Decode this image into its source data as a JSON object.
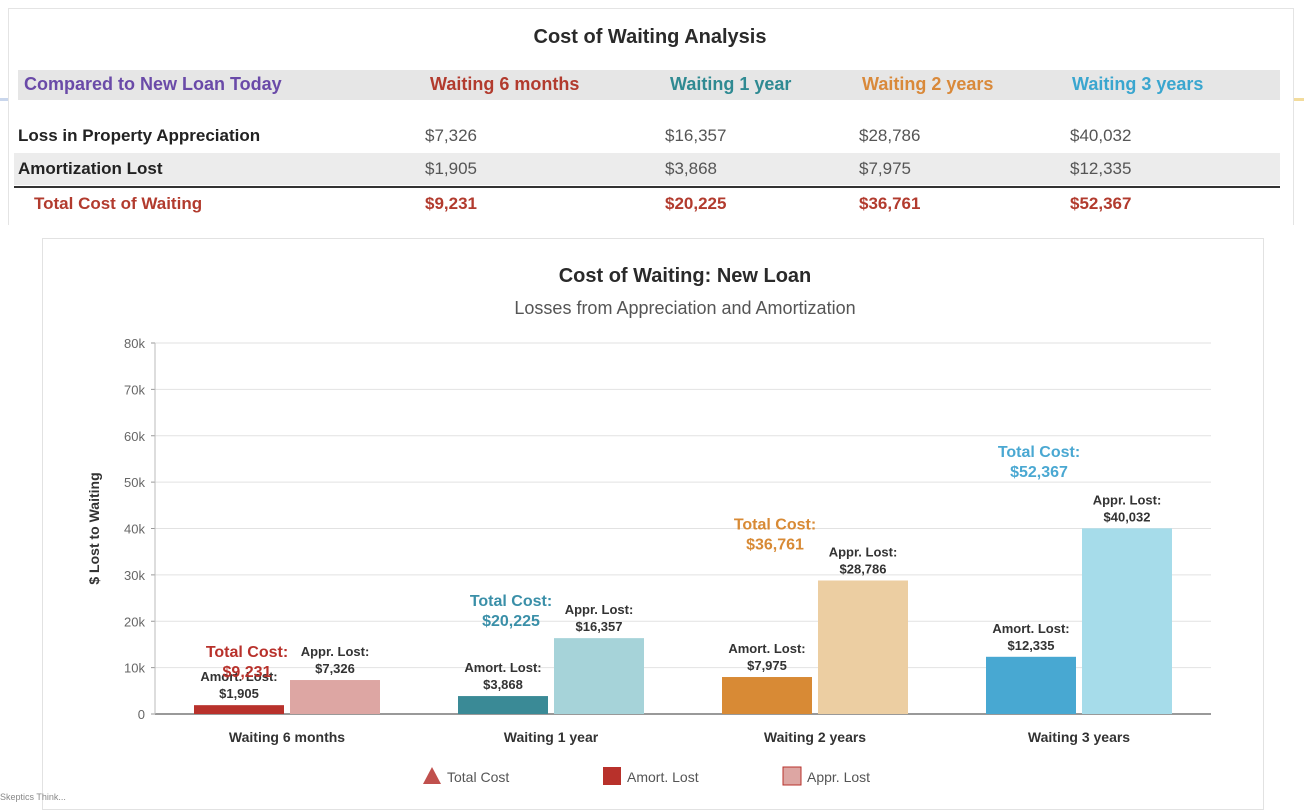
{
  "table": {
    "title": "Cost of Waiting Analysis",
    "headers": [
      "Compared to New Loan Today",
      "Waiting 6 months",
      "Waiting 1 year",
      "Waiting 2 years",
      "Waiting 3 years"
    ],
    "header_colors": [
      "#6a4aa8",
      "#b23b2e",
      "#2f8a92",
      "#d9893a",
      "#3aa6cf"
    ],
    "rows": [
      {
        "label": "Loss in Property Appreciation",
        "values": [
          "$7,326",
          "$16,357",
          "$28,786",
          "$40,032"
        ]
      },
      {
        "label": "Amortization Lost",
        "values": [
          "$1,905",
          "$3,868",
          "$7,975",
          "$12,335"
        ]
      }
    ],
    "total": {
      "label": "Total Cost of Waiting",
      "values": [
        "$9,231",
        "$20,225",
        "$36,761",
        "$52,367"
      ]
    }
  },
  "chart_data": {
    "type": "bar",
    "title": "Cost of Waiting: New Loan",
    "subtitle": "Losses from Appreciation and Amortization",
    "ylabel": "$ Lost to Waiting",
    "xlabel": "",
    "ylim": [
      0,
      80000
    ],
    "yticks": [
      0,
      10000,
      20000,
      30000,
      40000,
      50000,
      60000,
      70000,
      80000
    ],
    "ytick_labels": [
      "0",
      "10k",
      "20k",
      "30k",
      "40k",
      "50k",
      "60k",
      "70k",
      "80k"
    ],
    "categories": [
      "Waiting 6 months",
      "Waiting 1 year",
      "Waiting 2 years",
      "Waiting 3 years"
    ],
    "series": [
      {
        "name": "Amort. Lost",
        "values": [
          1905,
          3868,
          7975,
          12335
        ],
        "labels": [
          "$1,905",
          "$3,868",
          "$7,975",
          "$12,335"
        ],
        "colors": [
          "#b8312b",
          "#3a8a96",
          "#d88a35",
          "#48a8d2"
        ]
      },
      {
        "name": "Appr. Lost",
        "values": [
          7326,
          16357,
          28786,
          40032
        ],
        "labels": [
          "$7,326",
          "$16,357",
          "$28,786",
          "$40,032"
        ],
        "colors": [
          "#dda6a3",
          "#a6d3d9",
          "#ecceA2",
          "#a6dcea"
        ]
      }
    ],
    "totals": {
      "name": "Total Cost",
      "values": [
        9231,
        20225,
        36761,
        52367
      ],
      "labels": [
        "$9,231",
        "$20,225",
        "$36,761",
        "$52,367"
      ],
      "colors": [
        "#b8312b",
        "#3a8fa8",
        "#d88a35",
        "#4aa8d2"
      ]
    },
    "total_label_prefix": "Total Cost:",
    "amort_label_prefix": "Amort. Lost:",
    "appr_label_prefix": "Appr. Lost:",
    "legend": [
      "Total Cost",
      "Amort. Lost",
      "Appr. Lost"
    ],
    "legend_colors": [
      "#c0504d",
      "#b8312b",
      "#dda6a3"
    ]
  },
  "footer_text": "Skeptics Think..."
}
